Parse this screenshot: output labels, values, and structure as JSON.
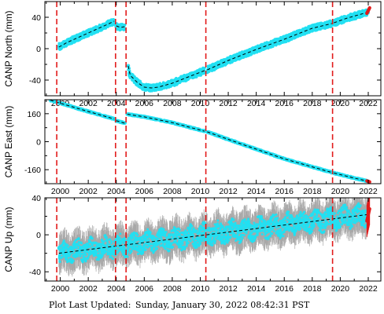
{
  "footer": {
    "label": "Plot Last Updated:",
    "value": "Sunday, January 30, 2022 08:42:31 PST"
  },
  "colors": {
    "data": "#22e0f2",
    "error_bars": "#a8a8a8",
    "trend": "#000000",
    "events": "#e21b1b",
    "recent": "#e21b1b"
  },
  "chart_data": [
    {
      "type": "scatter",
      "ylabel": "CANP North (mm)",
      "xlim": [
        1998.9,
        2022.9
      ],
      "ylim": [
        -60,
        60
      ],
      "xticks": [
        2000,
        2002,
        2004,
        2006,
        2008,
        2010,
        2012,
        2014,
        2016,
        2018,
        2020,
        2022
      ],
      "yticks": [
        -40,
        0,
        40
      ],
      "event_lines": [
        1999.75,
        2003.95,
        2004.7,
        2010.4,
        2019.45
      ],
      "segments": [
        {
          "x": [
            1999.9,
            2000.5,
            2001.5,
            2002.5,
            2003.5,
            2003.85
          ],
          "y": [
            2,
            8,
            16,
            24,
            32,
            35
          ]
        },
        {
          "x": [
            2004.0,
            2004.3,
            2004.6
          ],
          "y": [
            29,
            27,
            28
          ]
        },
        {
          "x": [
            2004.85,
            2005.0,
            2005.5,
            2006.0,
            2006.5,
            2007.0,
            2008.0,
            2009.0,
            2010.3
          ],
          "y": [
            -22,
            -34,
            -43,
            -49,
            -50,
            -49,
            -44,
            -37,
            -28
          ]
        },
        {
          "x": [
            2010.5,
            2012.0,
            2014.0,
            2016.0,
            2018.0,
            2019.4
          ],
          "y": [
            -27,
            -15,
            -1,
            12,
            26,
            32
          ]
        },
        {
          "x": [
            2019.55,
            2020.5,
            2021.5,
            2022.0
          ],
          "y": [
            33,
            39,
            44,
            47
          ]
        }
      ],
      "scatter_halfwidth": 4,
      "recent": {
        "x": [
          2021.9,
          2022.1
        ],
        "y": [
          45,
          52
        ]
      }
    },
    {
      "type": "scatter",
      "ylabel": "CANP East (mm)",
      "xlim": [
        1998.9,
        2022.9
      ],
      "ylim": [
        -240,
        240
      ],
      "xticks": [
        2000,
        2002,
        2004,
        2006,
        2008,
        2010,
        2012,
        2014,
        2016,
        2018,
        2020,
        2022
      ],
      "yticks": [
        -160,
        0,
        160
      ],
      "event_lines": [
        1999.75,
        2003.95,
        2004.7,
        2010.4,
        2019.45
      ],
      "segments": [
        {
          "x": [
            1999.3,
            2001.5,
            2003.85
          ],
          "y": [
            237,
            184,
            130
          ]
        },
        {
          "x": [
            2004.0,
            2004.6
          ],
          "y": [
            120,
            106
          ]
        },
        {
          "x": [
            2004.8,
            2006.0,
            2008.0,
            2010.3
          ],
          "y": [
            157,
            142,
            109,
            60
          ]
        },
        {
          "x": [
            2010.5,
            2013.0,
            2016.0,
            2019.4
          ],
          "y": [
            56,
            -15,
            -98,
            -176
          ]
        },
        {
          "x": [
            2019.55,
            2021.0,
            2022.0
          ],
          "y": [
            -179,
            -208,
            -226
          ]
        }
      ],
      "scatter_halfwidth": 4,
      "recent": {
        "x": [
          2021.9,
          2022.1
        ],
        "y": [
          -224,
          -230
        ]
      }
    },
    {
      "type": "scatter",
      "ylabel": "CANP Up (mm)",
      "xlim": [
        1998.9,
        2022.9
      ],
      "ylim": [
        -50,
        40
      ],
      "xticks": [
        2000,
        2002,
        2004,
        2006,
        2008,
        2010,
        2012,
        2014,
        2016,
        2018,
        2020,
        2022
      ],
      "yticks": [
        -40,
        0,
        40
      ],
      "event_lines": [
        1999.75,
        2003.95,
        2004.7,
        2010.4,
        2019.45
      ],
      "segments": [
        {
          "x": [
            1999.9,
            2022.0
          ],
          "y": [
            -20,
            22
          ]
        }
      ],
      "seasonal_amplitude": 4,
      "scatter_halfwidth": 10,
      "error_halfwidth": 22,
      "recent": {
        "x": [
          2021.9,
          2022.1
        ],
        "y": [
          15,
          28
        ]
      }
    }
  ]
}
